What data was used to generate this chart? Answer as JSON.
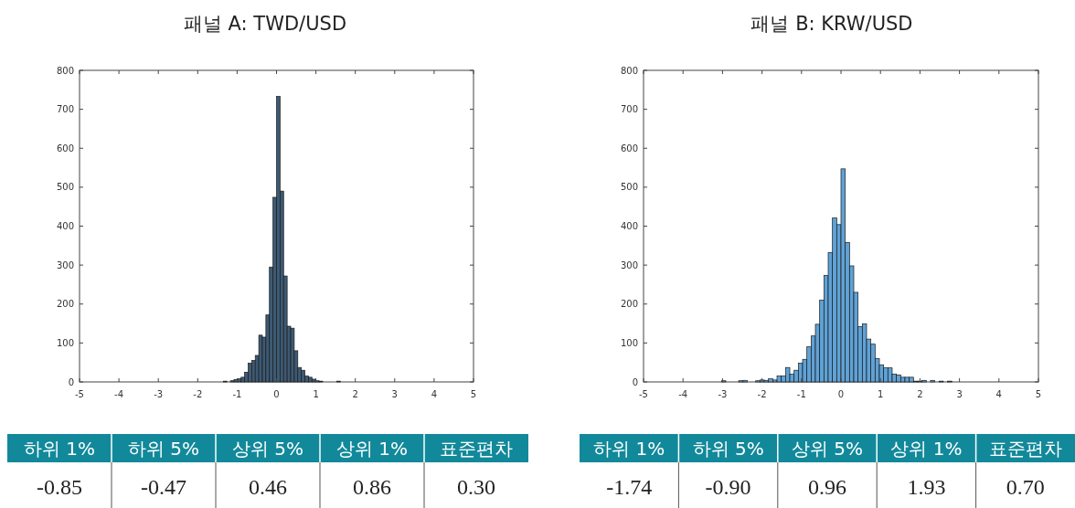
{
  "chart_data": [
    {
      "type": "histogram",
      "title": "패널 A: TWD/USD",
      "color": "#3d5a74",
      "xlim": [
        -5,
        5
      ],
      "xticks": [
        -5,
        -4,
        -3,
        -2,
        -1,
        0,
        1,
        2,
        3,
        4,
        5
      ],
      "ylim": [
        0,
        800
      ],
      "yticks": [
        0,
        100,
        200,
        300,
        400,
        500,
        600,
        700,
        800
      ],
      "bins": [
        -1.35,
        -1.26,
        -1.17,
        -1.08,
        -0.99,
        -0.9,
        -0.81,
        -0.72,
        -0.63,
        -0.54,
        -0.45,
        -0.36,
        -0.27,
        -0.18,
        -0.09,
        0,
        0.09,
        0.18,
        0.27,
        0.36,
        0.45,
        0.54,
        0.63,
        0.72,
        0.81,
        0.9,
        0.99,
        1.08,
        1.17,
        1.26,
        1.35,
        1.44,
        1.53,
        1.62
      ],
      "values": [
        2,
        0,
        3,
        6,
        8,
        12,
        25,
        48,
        55,
        68,
        120,
        115,
        172,
        295,
        474,
        733,
        490,
        272,
        143,
        138,
        80,
        37,
        30,
        15,
        12,
        7,
        3,
        2,
        0,
        0,
        0,
        0,
        2
      ]
    },
    {
      "type": "histogram",
      "title": "패널 B: KRW/USD",
      "color": "#5fa2d6",
      "xlim": [
        -5,
        5
      ],
      "xticks": [
        -5,
        -4,
        -3,
        -2,
        -1,
        0,
        1,
        2,
        3,
        4,
        5
      ],
      "ylim": [
        0,
        800
      ],
      "yticks": [
        0,
        100,
        200,
        300,
        400,
        500,
        600,
        700,
        800
      ],
      "bins": [
        -3.024,
        -2.916,
        -2.808,
        -2.7,
        -2.592,
        -2.484,
        -2.376,
        -2.268,
        -2.16,
        -2.052,
        -1.944,
        -1.836,
        -1.728,
        -1.62,
        -1.512,
        -1.404,
        -1.296,
        -1.188,
        -1.08,
        -0.972,
        -0.864,
        -0.756,
        -0.648,
        -0.54,
        -0.432,
        -0.324,
        -0.216,
        -0.108,
        0,
        0.108,
        0.216,
        0.324,
        0.432,
        0.54,
        0.648,
        0.756,
        0.864,
        0.972,
        1.08,
        1.188,
        1.296,
        1.404,
        1.512,
        1.62,
        1.728,
        1.836,
        1.944,
        2.052,
        2.16,
        2.268,
        2.376,
        2.484,
        2.592,
        2.7,
        2.808
      ],
      "values": [
        3,
        0,
        0,
        0,
        3,
        4,
        null,
        0,
        3,
        5,
        4,
        8,
        5,
        15,
        15,
        37,
        20,
        30,
        48,
        58,
        90,
        118,
        148,
        210,
        273,
        332,
        421,
        404,
        547,
        358,
        298,
        230,
        142,
        149,
        110,
        97,
        60,
        44,
        36,
        36,
        20,
        18,
        12,
        12,
        12,
        2,
        2,
        4,
        0,
        4,
        null,
        2,
        0,
        2
      ]
    },
    {
      "type": "other",
      "color": "#12899a",
      "categories": [
        "하위 1%",
        "하위 5%",
        "상위 5%",
        "상위 1%",
        "표준편차"
      ],
      "values": [
        -0.85,
        -0.47,
        0.46,
        0.86,
        0.3
      ],
      "value_labels": [
        "-0.85",
        "-0.47",
        "0.46",
        "0.86",
        "0.30"
      ]
    },
    {
      "type": "other",
      "color": "#12899a",
      "categories": [
        "하위 1%",
        "하위 5%",
        "상위 5%",
        "상위 1%",
        "표준편차"
      ],
      "values": [
        -1.74,
        -0.9,
        0.96,
        1.93,
        0.7
      ],
      "value_labels": [
        "-1.74",
        "-0.90",
        "0.96",
        "1.93",
        "0.70"
      ]
    }
  ]
}
